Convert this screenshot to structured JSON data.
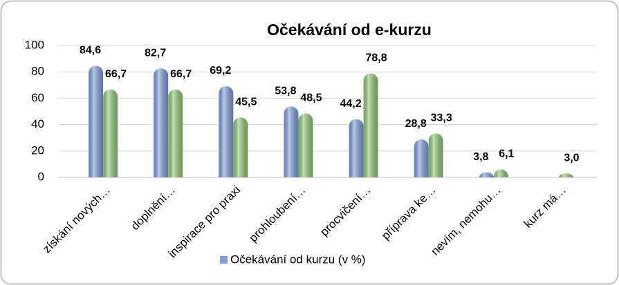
{
  "chart_data": {
    "type": "bar",
    "title": "Očekávání od e-kurzu",
    "categories": [
      "získání nových…",
      "doplnění…",
      "inspirace pro praxi",
      "prohloubení…",
      "procvičení…",
      "příprava ke…",
      "nevím, nemohu…",
      "kurz má…"
    ],
    "series": [
      {
        "name": "Očekávání od kurzu (v %)",
        "color": "#7f9fdc",
        "values": [
          84.6,
          82.7,
          69.2,
          53.8,
          44.2,
          28.8,
          3.8,
          null
        ],
        "value_labels": [
          "84,6",
          "82,7",
          "69,2",
          "53,8",
          "44,2",
          "28,8",
          "3,8",
          null
        ]
      },
      {
        "color": "#92c97a",
        "values": [
          66.7,
          66.7,
          45.5,
          48.5,
          78.8,
          33.3,
          6.1,
          3.0
        ],
        "value_labels": [
          "66,7",
          "66,7",
          "45,5",
          "48,5",
          "78,8",
          "33,3",
          "6,1",
          "3,0"
        ]
      }
    ],
    "ylim": [
      0,
      100
    ],
    "yticks": [
      0,
      20,
      40,
      60,
      80,
      100
    ],
    "grid": true,
    "legend": "bottom"
  }
}
